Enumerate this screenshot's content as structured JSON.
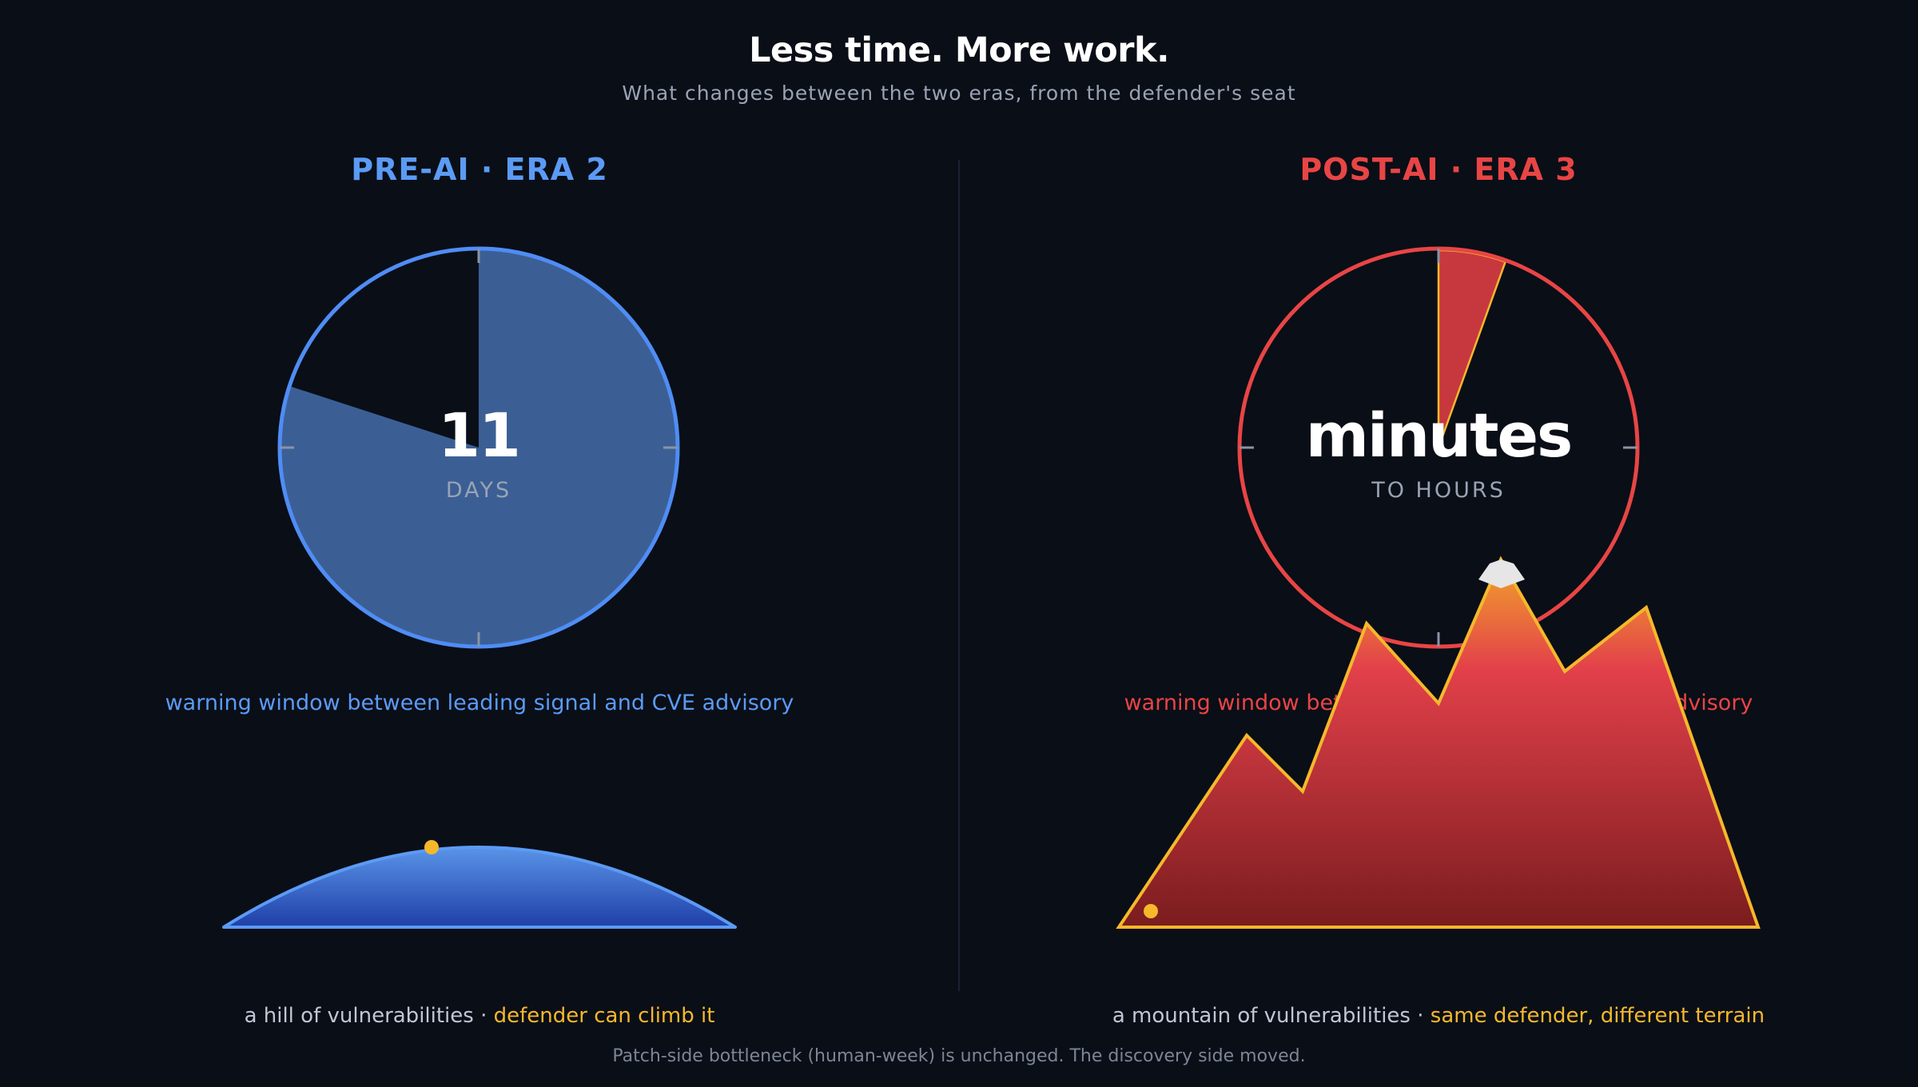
{
  "header": {
    "title": "Less time. More work.",
    "subtitle": "What changes between the two eras, from the defender's seat"
  },
  "left_panel": {
    "era_title": "PRE-AI · ERA 2",
    "clock_value": "11",
    "clock_unit": "DAYS",
    "clock_fill_fraction": 0.8,
    "warning_text": "warning window between leading signal and CVE advisory",
    "caption_main": "a hill of vulnerabilities",
    "caption_separator": " · ",
    "caption_accent": "defender can climb it",
    "accent_color": "#5b9bf5"
  },
  "right_panel": {
    "era_title": "POST-AI · ERA 3",
    "clock_value": "minutes",
    "clock_unit": "TO HOURS",
    "clock_fill_fraction": 0.055,
    "warning_text": "warning window between leading signal and CVE advisory",
    "caption_main": "a mountain of vulnerabilities",
    "caption_separator": " · ",
    "caption_accent": "same defender, different terrain",
    "accent_color": "#e84545"
  },
  "footer": {
    "note": "Patch-side bottleneck (human-week) is unchanged. The discovery side moved."
  },
  "colors": {
    "background": "#0a0e17",
    "defender_dot": "#f5b82b",
    "mountain_outline": "#f5b82b"
  }
}
